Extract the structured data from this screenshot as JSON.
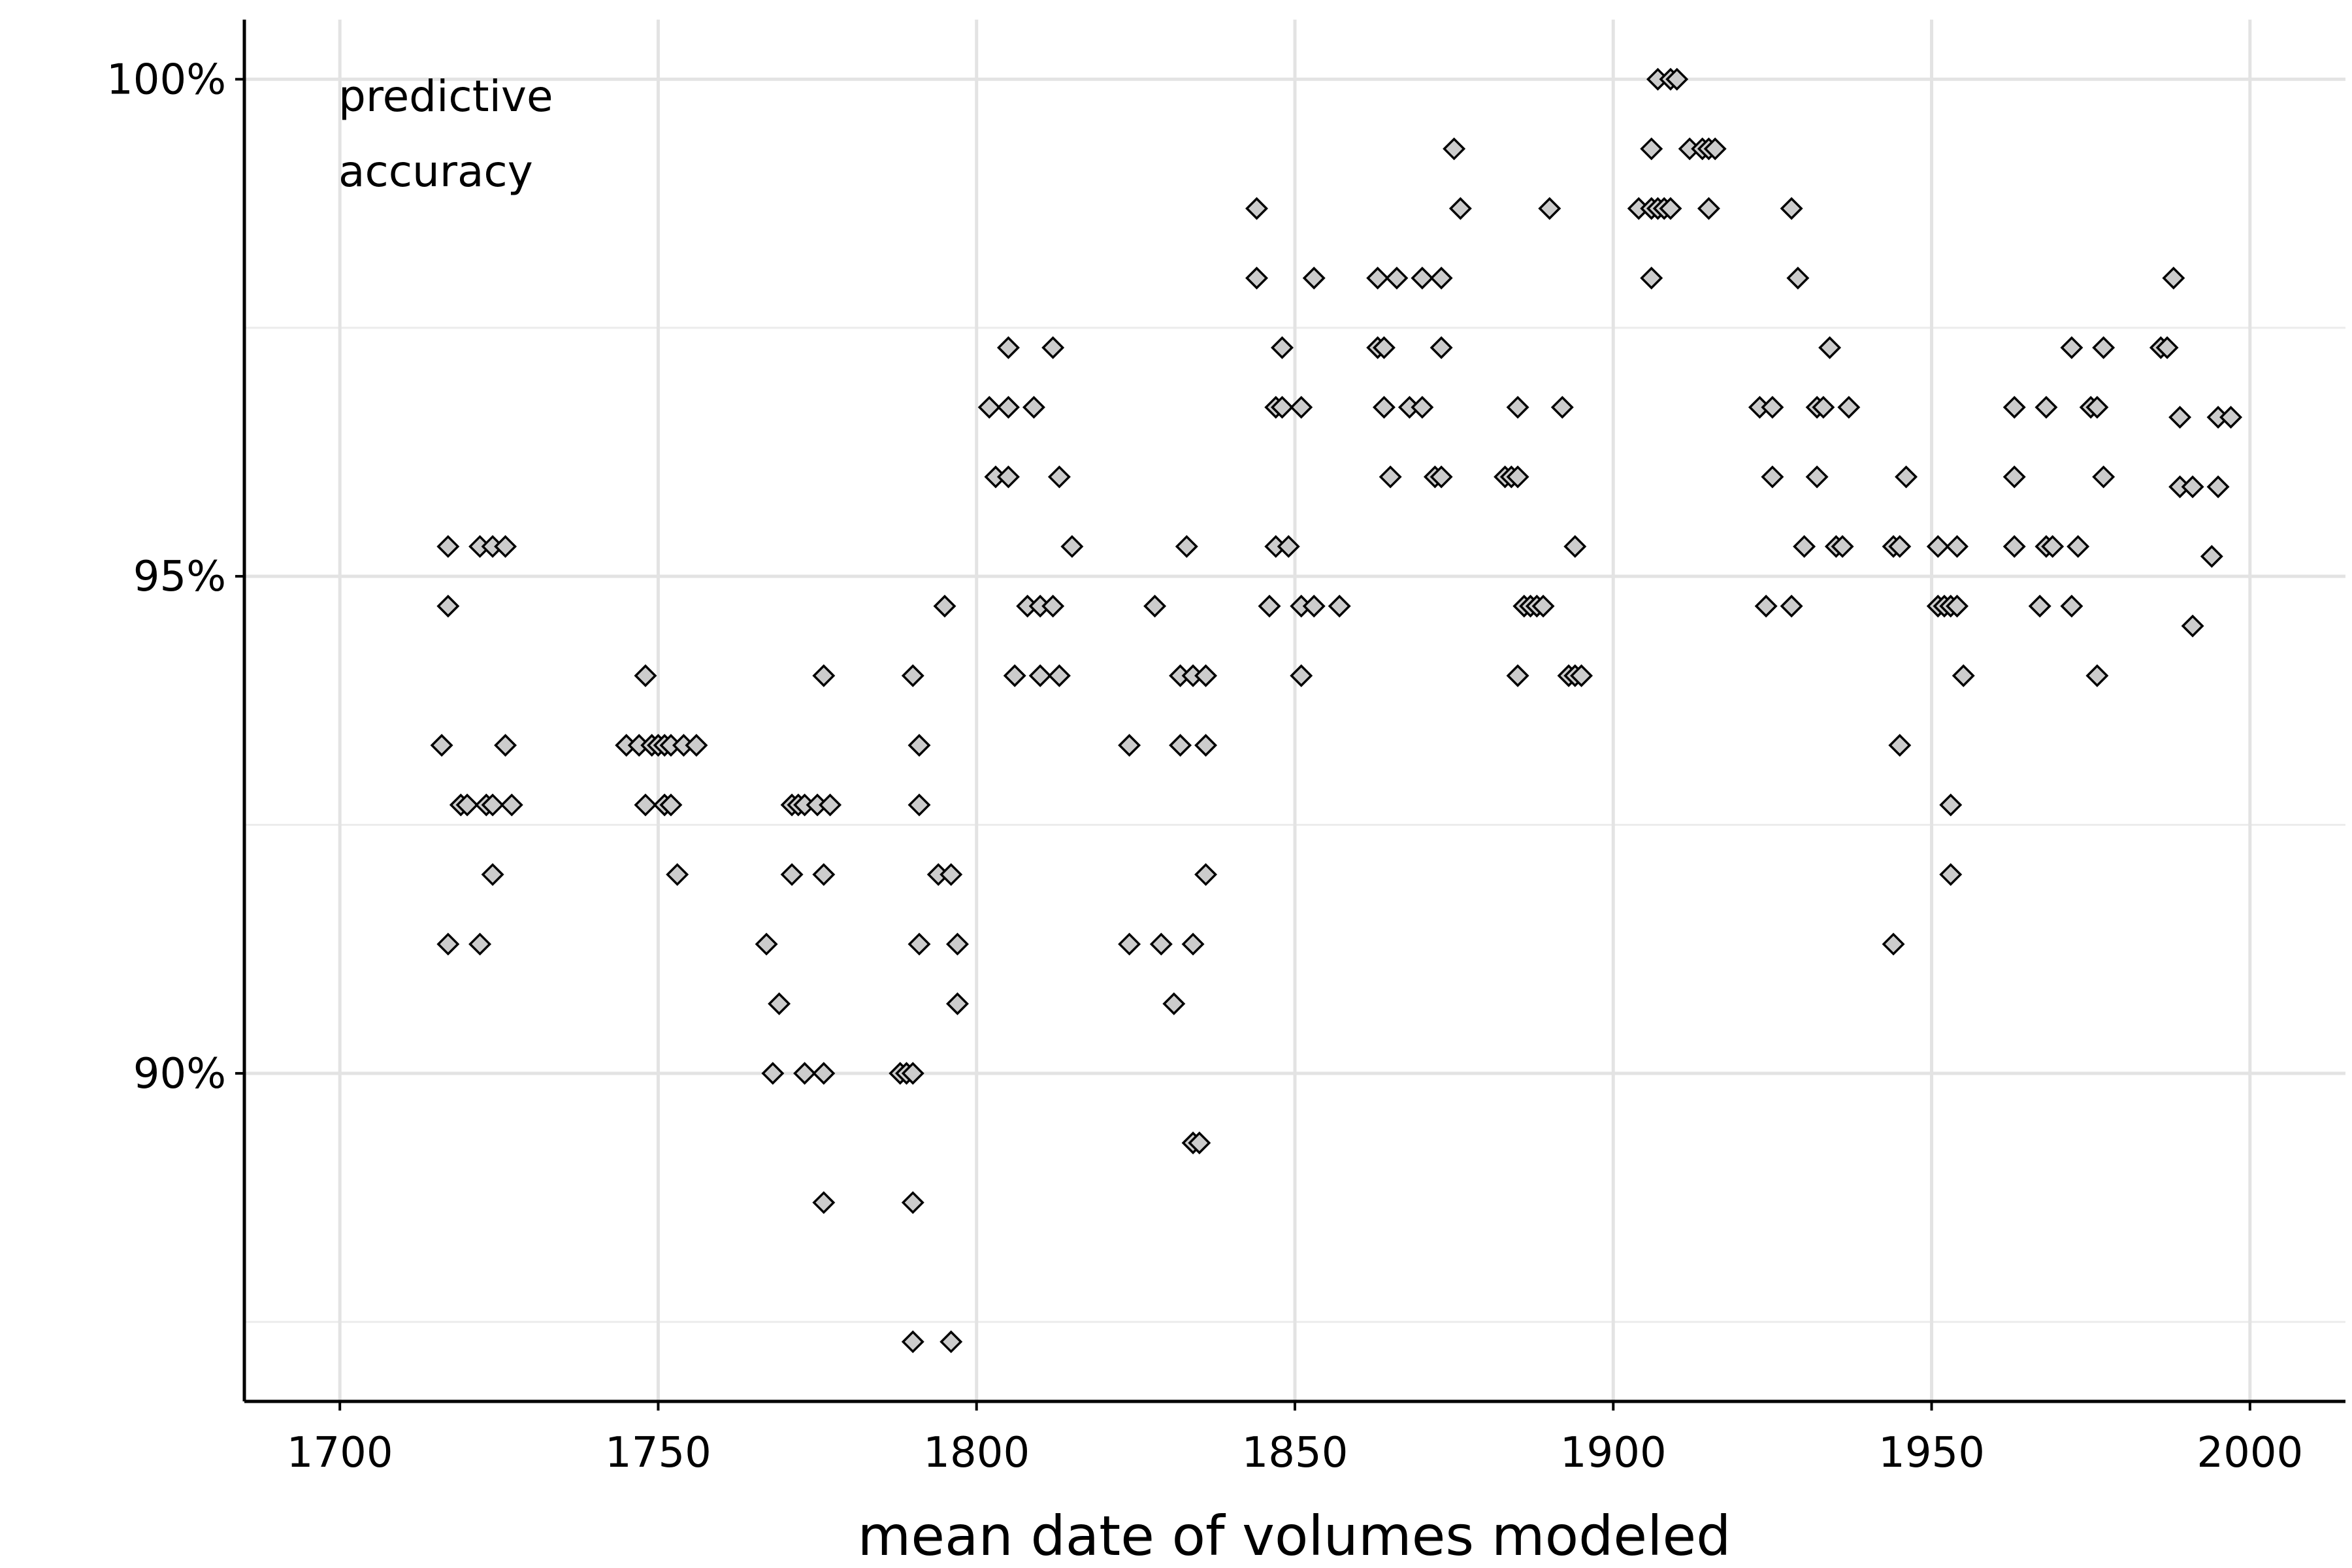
{
  "chart_data": {
    "type": "scatter",
    "title": "",
    "xlabel": "mean date of volumes modeled",
    "ylabel": "",
    "annotation": [
      "predictive",
      "accuracy"
    ],
    "xlim": [
      1685,
      2015
    ],
    "ylim": [
      86.7,
      100.6
    ],
    "x_ticks": [
      1700,
      1750,
      1800,
      1850,
      1900,
      1950,
      2000
    ],
    "x_tick_labels": [
      "1700",
      "1750",
      "1800",
      "1850",
      "1900",
      "1950",
      "2000"
    ],
    "y_ticks": [
      90,
      95,
      100
    ],
    "y_tick_labels": [
      "90%",
      "95%",
      "100%"
    ],
    "y_minor_ticks": [
      87.5,
      92.5,
      97.5
    ],
    "grid": true,
    "marker": "diamond",
    "marker_fill": "#cccccc",
    "marker_edge": "#000000",
    "points": [
      [
        1717,
        95.3
      ],
      [
        1722,
        95.3
      ],
      [
        1724,
        95.3
      ],
      [
        1726,
        95.3
      ],
      [
        1717,
        94.7
      ],
      [
        1716,
        93.3
      ],
      [
        1726,
        93.3
      ],
      [
        1719,
        92.7
      ],
      [
        1720,
        92.7
      ],
      [
        1723,
        92.7
      ],
      [
        1724,
        92.7
      ],
      [
        1727,
        92.7
      ],
      [
        1724,
        92.0
      ],
      [
        1717,
        91.3
      ],
      [
        1722,
        91.3
      ],
      [
        1745,
        93.3
      ],
      [
        1747,
        93.3
      ],
      [
        1749,
        93.3
      ],
      [
        1750,
        93.3
      ],
      [
        1751,
        93.3
      ],
      [
        1752,
        93.3
      ],
      [
        1754,
        93.3
      ],
      [
        1756,
        93.3
      ],
      [
        1748,
        94.0
      ],
      [
        1748,
        92.7
      ],
      [
        1751,
        92.7
      ],
      [
        1752,
        92.7
      ],
      [
        1753,
        92.0
      ],
      [
        1771,
        92.7
      ],
      [
        1772,
        92.7
      ],
      [
        1773,
        92.7
      ],
      [
        1775,
        92.7
      ],
      [
        1777,
        92.7
      ],
      [
        1771,
        92.0
      ],
      [
        1776,
        92.0
      ],
      [
        1776,
        94.0
      ],
      [
        1767,
        91.3
      ],
      [
        1769,
        90.7
      ],
      [
        1768,
        90.0
      ],
      [
        1773,
        90.0
      ],
      [
        1776,
        90.0
      ],
      [
        1776,
        88.7
      ],
      [
        1790,
        94.0
      ],
      [
        1795,
        94.7
      ],
      [
        1791,
        93.3
      ],
      [
        1791,
        92.7
      ],
      [
        1794,
        92.0
      ],
      [
        1796,
        92.0
      ],
      [
        1791,
        91.3
      ],
      [
        1797,
        91.3
      ],
      [
        1788,
        90.0
      ],
      [
        1789,
        90.0
      ],
      [
        1790,
        90.0
      ],
      [
        1797,
        90.7
      ],
      [
        1790,
        88.7
      ],
      [
        1790,
        87.3
      ],
      [
        1796,
        87.3
      ],
      [
        1805,
        97.3
      ],
      [
        1812,
        97.3
      ],
      [
        1802,
        96.7
      ],
      [
        1805,
        96.7
      ],
      [
        1809,
        96.7
      ],
      [
        1803,
        96.0
      ],
      [
        1805,
        96.0
      ],
      [
        1813,
        96.0
      ],
      [
        1815,
        95.3
      ],
      [
        1808,
        94.7
      ],
      [
        1810,
        94.7
      ],
      [
        1812,
        94.7
      ],
      [
        1806,
        94.0
      ],
      [
        1810,
        94.0
      ],
      [
        1813,
        94.0
      ],
      [
        1824,
        93.3
      ],
      [
        1828,
        94.7
      ],
      [
        1832,
        94.0
      ],
      [
        1834,
        94.0
      ],
      [
        1836,
        94.0
      ],
      [
        1833,
        95.3
      ],
      [
        1832,
        93.3
      ],
      [
        1836,
        93.3
      ],
      [
        1836,
        92.0
      ],
      [
        1824,
        91.3
      ],
      [
        1829,
        91.3
      ],
      [
        1834,
        91.3
      ],
      [
        1831,
        90.7
      ],
      [
        1834,
        89.3
      ],
      [
        1835,
        89.3
      ],
      [
        1844,
        98.7
      ],
      [
        1844,
        98.0
      ],
      [
        1853,
        98.0
      ],
      [
        1848,
        97.3
      ],
      [
        1847,
        96.7
      ],
      [
        1848,
        96.7
      ],
      [
        1851,
        96.7
      ],
      [
        1847,
        95.3
      ],
      [
        1849,
        95.3
      ],
      [
        1846,
        94.7
      ],
      [
        1851,
        94.7
      ],
      [
        1853,
        94.7
      ],
      [
        1857,
        94.7
      ],
      [
        1851,
        94.0
      ],
      [
        1875,
        99.3
      ],
      [
        1863,
        98.0
      ],
      [
        1866,
        98.0
      ],
      [
        1870,
        98.0
      ],
      [
        1873,
        98.0
      ],
      [
        1876,
        98.7
      ],
      [
        1863,
        97.3
      ],
      [
        1864,
        97.3
      ],
      [
        1873,
        97.3
      ],
      [
        1864,
        96.7
      ],
      [
        1868,
        96.7
      ],
      [
        1870,
        96.7
      ],
      [
        1865,
        96.0
      ],
      [
        1872,
        96.0
      ],
      [
        1873,
        96.0
      ],
      [
        1890,
        98.7
      ],
      [
        1885,
        96.7
      ],
      [
        1892,
        96.7
      ],
      [
        1883,
        96.0
      ],
      [
        1884,
        96.0
      ],
      [
        1885,
        96.0
      ],
      [
        1894,
        95.3
      ],
      [
        1886,
        94.7
      ],
      [
        1887,
        94.7
      ],
      [
        1888,
        94.7
      ],
      [
        1889,
        94.7
      ],
      [
        1885,
        94.0
      ],
      [
        1893,
        94.0
      ],
      [
        1894,
        94.0
      ],
      [
        1895,
        94.0
      ],
      [
        1907,
        100.0
      ],
      [
        1909,
        100.0
      ],
      [
        1910,
        100.0
      ],
      [
        1906,
        99.3
      ],
      [
        1912,
        99.3
      ],
      [
        1914,
        99.3
      ],
      [
        1915,
        99.3
      ],
      [
        1916,
        99.3
      ],
      [
        1904,
        98.7
      ],
      [
        1906,
        98.7
      ],
      [
        1907,
        98.7
      ],
      [
        1908,
        98.7
      ],
      [
        1909,
        98.7
      ],
      [
        1915,
        98.7
      ],
      [
        1906,
        98.0
      ],
      [
        1928,
        98.7
      ],
      [
        1929,
        98.0
      ],
      [
        1934,
        97.3
      ],
      [
        1923,
        96.7
      ],
      [
        1925,
        96.7
      ],
      [
        1932,
        96.7
      ],
      [
        1933,
        96.7
      ],
      [
        1937,
        96.7
      ],
      [
        1925,
        96.0
      ],
      [
        1932,
        96.0
      ],
      [
        1930,
        95.3
      ],
      [
        1935,
        95.3
      ],
      [
        1936,
        95.3
      ],
      [
        1924,
        94.7
      ],
      [
        1928,
        94.7
      ],
      [
        1946,
        96.0
      ],
      [
        1944,
        95.3
      ],
      [
        1945,
        95.3
      ],
      [
        1951,
        95.3
      ],
      [
        1954,
        95.3
      ],
      [
        1951,
        94.7
      ],
      [
        1952,
        94.7
      ],
      [
        1953,
        94.7
      ],
      [
        1954,
        94.7
      ],
      [
        1955,
        94.0
      ],
      [
        1945,
        93.3
      ],
      [
        1953,
        92.7
      ],
      [
        1953,
        92.0
      ],
      [
        1944,
        91.3
      ],
      [
        1972,
        97.3
      ],
      [
        1977,
        97.3
      ],
      [
        1963,
        96.7
      ],
      [
        1968,
        96.7
      ],
      [
        1975,
        96.7
      ],
      [
        1976,
        96.7
      ],
      [
        1963,
        96.0
      ],
      [
        1977,
        96.0
      ],
      [
        1963,
        95.3
      ],
      [
        1968,
        95.3
      ],
      [
        1969,
        95.3
      ],
      [
        1973,
        95.3
      ],
      [
        1967,
        94.7
      ],
      [
        1972,
        94.7
      ],
      [
        1976,
        94.0
      ],
      [
        1988,
        98.0
      ],
      [
        1986,
        97.3
      ],
      [
        1987,
        97.3
      ],
      [
        1989,
        96.6
      ],
      [
        1995,
        96.6
      ],
      [
        1997,
        96.6
      ],
      [
        1989,
        95.9
      ],
      [
        1991,
        95.9
      ],
      [
        1995,
        95.9
      ],
      [
        1994,
        95.2
      ],
      [
        1991,
        94.5
      ]
    ]
  }
}
